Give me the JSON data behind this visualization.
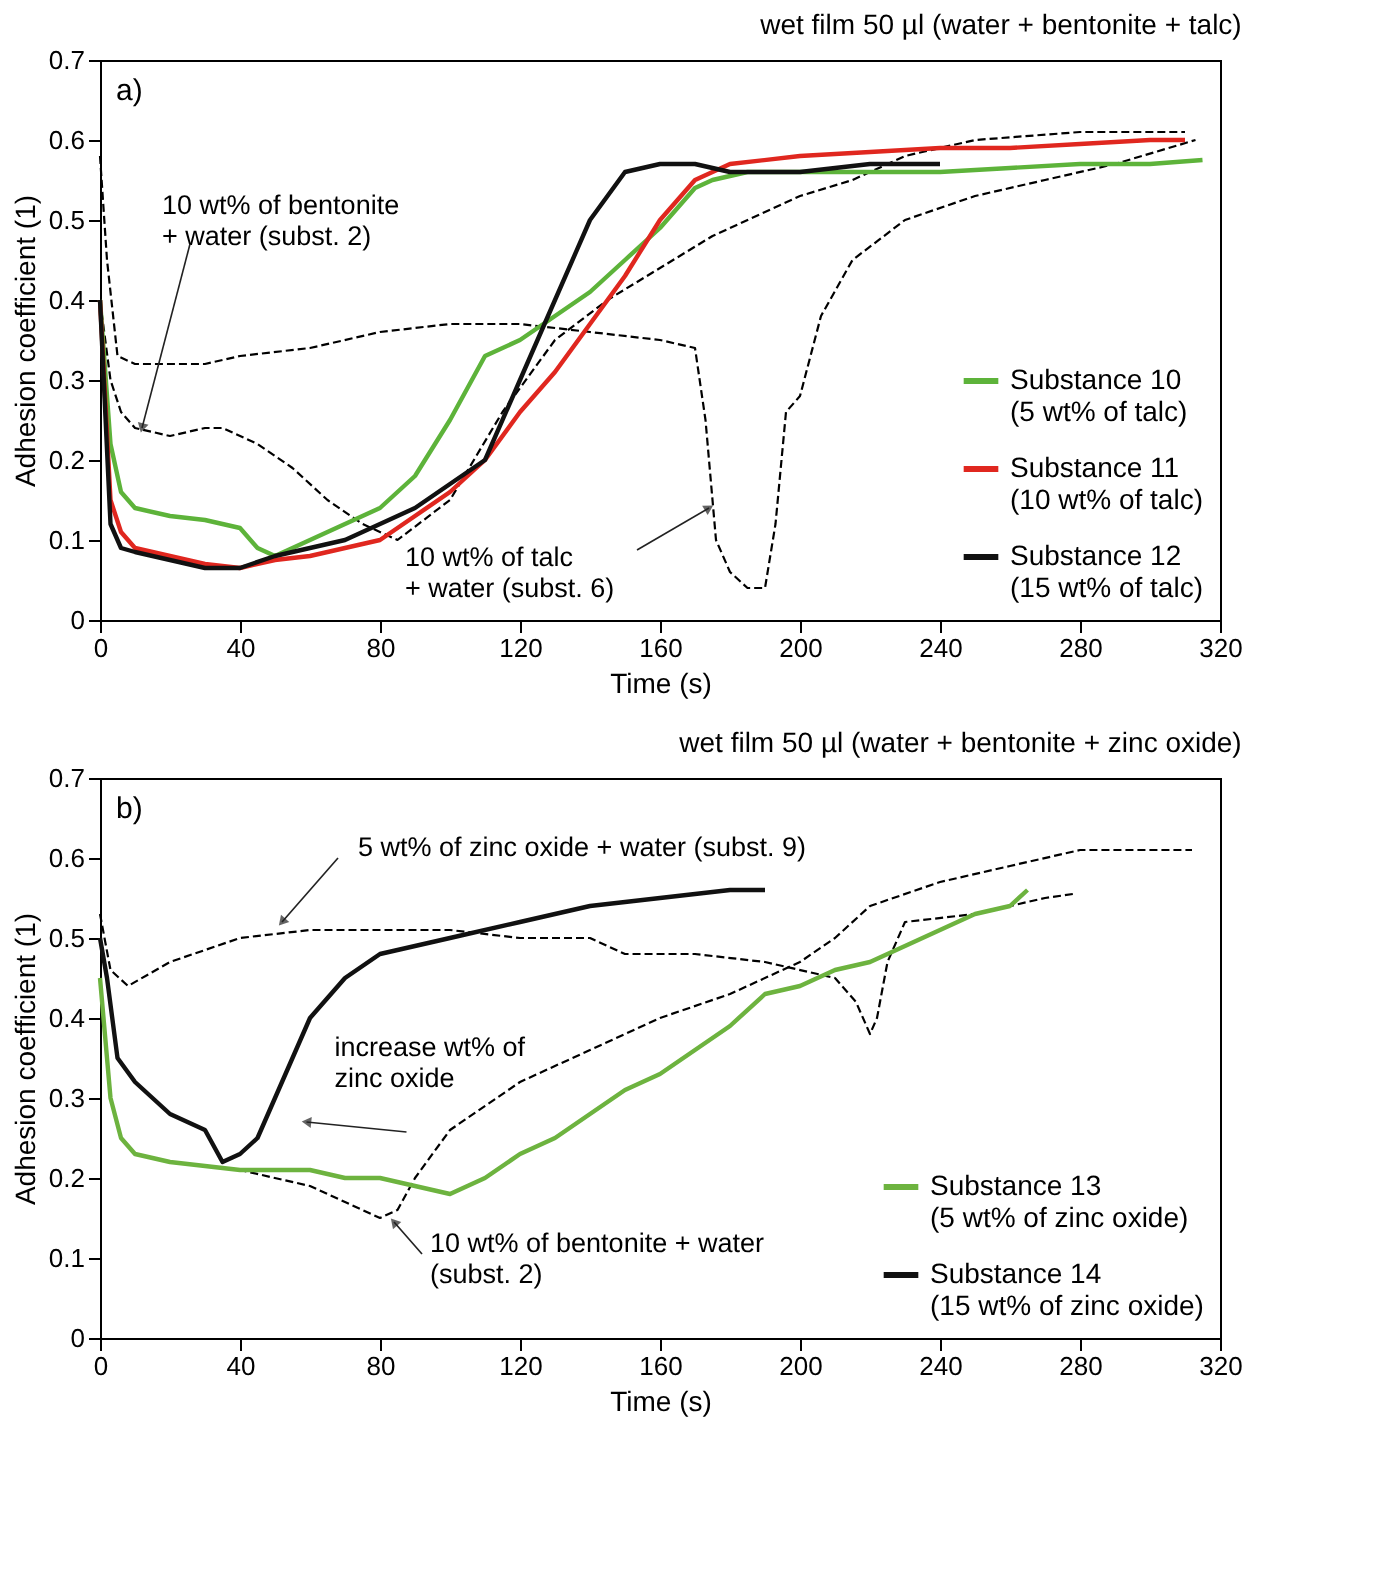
{
  "chart_data": [
    {
      "type": "line",
      "title": "wet film 50 µl (water + bentonite + talc)",
      "xlabel": "Time (s)",
      "ylabel": "Adhesion coefficient (1)",
      "xlim": [
        0,
        320
      ],
      "xticks": [
        0,
        40,
        80,
        120,
        160,
        200,
        240,
        280,
        320
      ],
      "ylim": [
        0,
        0.7
      ],
      "yticks": [
        0,
        0.1,
        0.2,
        0.3,
        0.4,
        0.5,
        0.6,
        0.7
      ],
      "legend": "bottom right",
      "line_style": "solid",
      "annotations": [
        "a)",
        {
          "text": "10 wt% of bentonite\n+ water (subst. 2)",
          "x": 12,
          "y": 0.24
        },
        {
          "text": "10 wt% of talc\n+ water (subst. 6)",
          "x": 174,
          "y": 0.14
        }
      ],
      "series": [
        {
          "color": "#000000",
          "line_style": "dashed",
          "x": [
            0,
            3,
            6,
            10,
            20,
            30,
            35,
            45,
            55,
            65,
            75,
            85,
            100,
            115,
            130,
            145,
            160,
            175,
            190,
            200,
            215,
            230,
            250,
            280,
            310
          ],
          "values": [
            0.4,
            0.3,
            0.26,
            0.24,
            0.23,
            0.24,
            0.24,
            0.22,
            0.19,
            0.15,
            0.12,
            0.1,
            0.15,
            0.26,
            0.35,
            0.4,
            0.44,
            0.48,
            0.51,
            0.53,
            0.55,
            0.58,
            0.6,
            0.61,
            0.61
          ]
        },
        {
          "color": "#000000",
          "line_style": "dashed",
          "x": [
            0,
            2,
            5,
            10,
            20,
            30,
            40,
            60,
            80,
            100,
            120,
            140,
            160,
            170,
            173,
            176,
            180,
            185,
            190,
            193,
            196,
            200,
            206,
            215,
            230,
            250,
            270,
            290,
            313
          ],
          "values": [
            0.58,
            0.45,
            0.33,
            0.32,
            0.32,
            0.32,
            0.33,
            0.34,
            0.36,
            0.37,
            0.37,
            0.36,
            0.35,
            0.34,
            0.25,
            0.1,
            0.06,
            0.04,
            0.04,
            0.12,
            0.26,
            0.28,
            0.38,
            0.45,
            0.5,
            0.53,
            0.55,
            0.57,
            0.6
          ]
        },
        {
          "name": "Substance 10\n(5 wt% of talc)",
          "color": "#5db33a",
          "x": [
            0,
            3,
            6,
            10,
            20,
            30,
            40,
            45,
            50,
            60,
            70,
            80,
            90,
            100,
            110,
            120,
            130,
            140,
            150,
            160,
            170,
            175,
            185,
            200,
            220,
            240,
            260,
            280,
            300,
            315
          ],
          "values": [
            0.4,
            0.22,
            0.16,
            0.14,
            0.13,
            0.125,
            0.115,
            0.09,
            0.08,
            0.1,
            0.12,
            0.14,
            0.18,
            0.25,
            0.33,
            0.35,
            0.38,
            0.41,
            0.45,
            0.49,
            0.54,
            0.55,
            0.56,
            0.56,
            0.56,
            0.56,
            0.565,
            0.57,
            0.57,
            0.575
          ]
        },
        {
          "name": "Substance 11\n(10 wt% of talc)",
          "color": "#e0271f",
          "x": [
            0,
            3,
            6,
            10,
            20,
            30,
            40,
            50,
            60,
            70,
            80,
            90,
            100,
            110,
            120,
            130,
            140,
            150,
            160,
            170,
            180,
            200,
            220,
            240,
            260,
            280,
            300,
            310
          ],
          "values": [
            0.4,
            0.15,
            0.11,
            0.09,
            0.08,
            0.07,
            0.065,
            0.075,
            0.08,
            0.09,
            0.1,
            0.13,
            0.16,
            0.2,
            0.26,
            0.31,
            0.37,
            0.43,
            0.5,
            0.55,
            0.57,
            0.58,
            0.585,
            0.59,
            0.59,
            0.595,
            0.6,
            0.6
          ]
        },
        {
          "name": "Substance 12\n(15 wt% of talc)",
          "color": "#111111",
          "x": [
            0,
            3,
            6,
            10,
            20,
            30,
            40,
            50,
            60,
            70,
            80,
            90,
            100,
            110,
            120,
            130,
            140,
            150,
            160,
            170,
            180,
            200,
            220,
            240
          ],
          "values": [
            0.4,
            0.12,
            0.09,
            0.085,
            0.075,
            0.065,
            0.065,
            0.08,
            0.09,
            0.1,
            0.12,
            0.14,
            0.17,
            0.2,
            0.3,
            0.4,
            0.5,
            0.56,
            0.57,
            0.57,
            0.56,
            0.56,
            0.57,
            0.57
          ]
        }
      ]
    },
    {
      "type": "line",
      "title": "wet film 50 µl (water + bentonite + zinc oxide)",
      "xlabel": "Time (s)",
      "ylabel": "Adhesion coefficient (1)",
      "xlim": [
        0,
        320
      ],
      "xticks": [
        0,
        40,
        80,
        120,
        160,
        200,
        240,
        280,
        320
      ],
      "ylim": [
        0,
        0.7
      ],
      "yticks": [
        0,
        0.1,
        0.2,
        0.3,
        0.4,
        0.5,
        0.6,
        0.7
      ],
      "legend": "bottom right",
      "line_style": "solid",
      "annotations": [
        "b)",
        {
          "text": "5 wt% of zinc oxide + water (subst. 9)",
          "x": 52,
          "y": 0.52
        },
        {
          "text": "increase wt% of\nzinc oxide",
          "x": 59,
          "y": 0.27
        },
        {
          "text": "10 wt% of bentonite + water\n(subst. 2)",
          "x": 84,
          "y": 0.145
        }
      ],
      "series": [
        {
          "color": "#000000",
          "line_style": "dashed",
          "x": [
            0,
            3,
            8,
            20,
            40,
            60,
            80,
            100,
            120,
            140,
            150,
            170,
            190,
            210,
            216,
            220,
            222,
            225,
            230,
            250,
            270,
            278
          ],
          "values": [
            0.53,
            0.46,
            0.44,
            0.47,
            0.5,
            0.51,
            0.51,
            0.51,
            0.5,
            0.5,
            0.48,
            0.48,
            0.47,
            0.45,
            0.42,
            0.38,
            0.4,
            0.47,
            0.52,
            0.53,
            0.55,
            0.555
          ]
        },
        {
          "color": "#000000",
          "line_style": "dashed",
          "x": [
            0,
            3,
            6,
            10,
            20,
            40,
            60,
            70,
            80,
            85,
            90,
            100,
            120,
            140,
            160,
            180,
            200,
            210,
            220,
            240,
            260,
            280,
            300,
            312
          ],
          "values": [
            0.45,
            0.3,
            0.25,
            0.23,
            0.22,
            0.21,
            0.19,
            0.17,
            0.15,
            0.16,
            0.2,
            0.26,
            0.32,
            0.36,
            0.4,
            0.43,
            0.47,
            0.5,
            0.54,
            0.57,
            0.59,
            0.61,
            0.61,
            0.61
          ]
        },
        {
          "name": "Substance 13\n(5 wt% of zinc oxide)",
          "color": "#6db33f",
          "x": [
            0,
            3,
            6,
            10,
            20,
            40,
            60,
            70,
            80,
            90,
            100,
            110,
            120,
            130,
            140,
            150,
            160,
            170,
            180,
            190,
            200,
            210,
            220,
            230,
            240,
            250,
            260,
            265
          ],
          "values": [
            0.45,
            0.3,
            0.25,
            0.23,
            0.22,
            0.21,
            0.21,
            0.2,
            0.2,
            0.19,
            0.18,
            0.2,
            0.23,
            0.25,
            0.28,
            0.31,
            0.33,
            0.36,
            0.39,
            0.43,
            0.44,
            0.46,
            0.47,
            0.49,
            0.51,
            0.53,
            0.54,
            0.56
          ]
        },
        {
          "name": "Substance 14\n(15 wt% of zinc oxide)",
          "color": "#111111",
          "x": [
            0,
            2,
            5,
            10,
            20,
            30,
            35,
            40,
            45,
            50,
            55,
            60,
            70,
            80,
            90,
            100,
            120,
            140,
            160,
            180,
            190
          ],
          "values": [
            0.5,
            0.45,
            0.35,
            0.32,
            0.28,
            0.26,
            0.22,
            0.23,
            0.25,
            0.3,
            0.35,
            0.4,
            0.45,
            0.48,
            0.49,
            0.5,
            0.52,
            0.54,
            0.55,
            0.56,
            0.56
          ]
        }
      ]
    }
  ]
}
